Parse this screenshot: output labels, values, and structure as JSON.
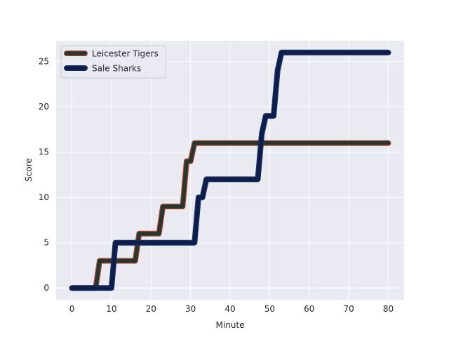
{
  "chart_data": {
    "type": "line",
    "title": "",
    "xlabel": "Minute",
    "ylabel": "Score",
    "xlim": [
      -4,
      84
    ],
    "ylim": [
      -1.3,
      27.3
    ],
    "xticks": [
      0,
      10,
      20,
      30,
      40,
      50,
      60,
      70,
      80
    ],
    "yticks": [
      0,
      5,
      10,
      15,
      20,
      25
    ],
    "grid": true,
    "legend_position": "top-left",
    "background_color": "#eaeaf2",
    "grid_color": "#ffffff",
    "series": [
      {
        "name": "Leicester Tigers",
        "line_color": "#1f3a2e",
        "edge_color": "#c0392b",
        "x": [
          0,
          6,
          7,
          16,
          17,
          22,
          23,
          28,
          29,
          30,
          31,
          80
        ],
        "y": [
          0,
          0,
          3,
          3,
          6,
          6,
          9,
          9,
          14,
          14,
          16,
          16
        ]
      },
      {
        "name": "Sale Sharks",
        "line_color": "#0b1f4f",
        "edge_color": "#1f2f5a",
        "x": [
          0,
          10,
          11,
          31,
          32,
          33,
          34,
          47,
          48,
          49,
          51,
          52,
          53,
          80
        ],
        "y": [
          0,
          0,
          5,
          5,
          10,
          10,
          12,
          12,
          17,
          19,
          19,
          24,
          26,
          26
        ]
      }
    ]
  }
}
